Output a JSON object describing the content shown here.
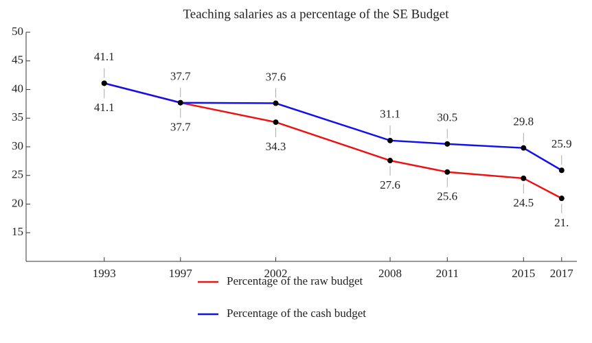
{
  "chart_data": {
    "type": "line",
    "title": "Teaching salaries as a percentage of the SE Budget",
    "x": [
      1993,
      1997,
      2002,
      2008,
      2011,
      2015,
      2017
    ],
    "series": [
      {
        "name": "Percentage of the raw budget",
        "color": "#ee1111",
        "values": [
          41.1,
          37.7,
          34.3,
          27.6,
          25.6,
          24.5,
          21
        ],
        "value_labels": [
          "41.1",
          "37.7",
          "34.3",
          "27.6",
          "25.6",
          "24.5",
          "21."
        ]
      },
      {
        "name": "Percentage of the cash budget",
        "color": "#1111ee",
        "values": [
          41.1,
          37.7,
          37.6,
          31.1,
          30.5,
          29.8,
          25.9
        ],
        "value_labels": [
          "41.1",
          "37.7",
          "37.6",
          "31.1",
          "30.5",
          "29.8",
          "25.9"
        ]
      }
    ],
    "xlim": [
      1988.9,
      2017.8
    ],
    "xticks": [
      1993,
      1997,
      2002,
      2008,
      2011,
      2015,
      2017
    ],
    "ylim": [
      10,
      50
    ],
    "yticks": [
      15,
      20,
      25,
      30,
      35,
      40,
      45,
      50
    ]
  }
}
